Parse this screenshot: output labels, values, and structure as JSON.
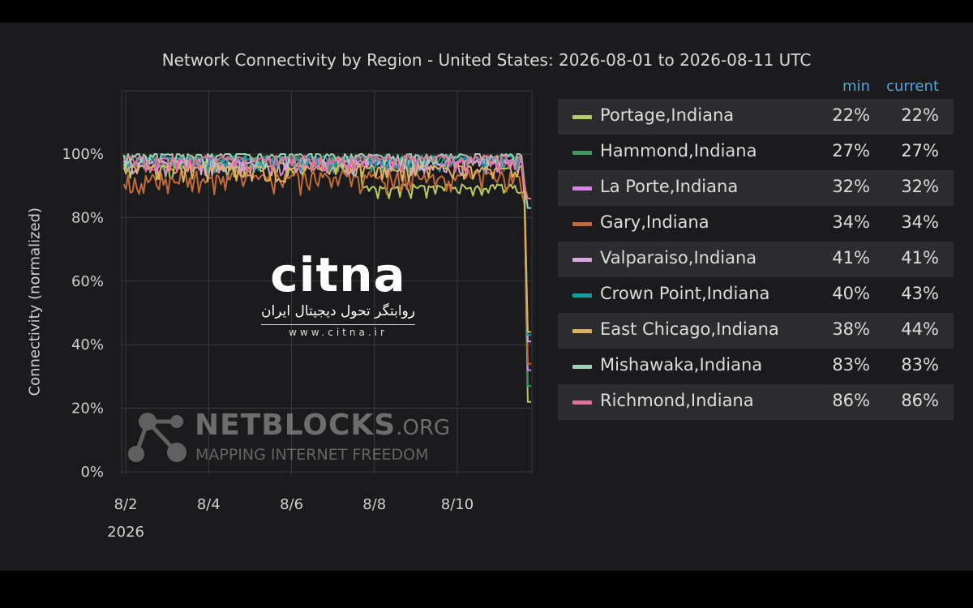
{
  "title": "Network Connectivity by Region - United States: 2026-08-01 to 2026-08-11 UTC",
  "legend_headers": {
    "min": "min",
    "current": "current"
  },
  "colors": {
    "panel_bg": "#1b1b1d",
    "grid": "#3a3a3c",
    "header_accent": "#4fa7e4"
  },
  "watermarks": {
    "citna_logo": "citna",
    "citna_tagline": "روابتگر تحول دیجیتال ایران",
    "citna_url": "www.citna.ir",
    "netblocks_name": "NETBLOCKS",
    "netblocks_suffix": ".ORG",
    "netblocks_tag": "MAPPING INTERNET FREEDOM"
  },
  "chart_data": {
    "type": "line",
    "title": "Network Connectivity by Region - United States: 2026-08-01 to 2026-08-11 UTC",
    "ylabel": "Connectivity (normalized)",
    "xlabel": "",
    "ylim": [
      0,
      100
    ],
    "y_ticks": [
      "0%",
      "20%",
      "40%",
      "60%",
      "80%",
      "100%"
    ],
    "x_ticks": [
      "8/2",
      "8/4",
      "8/6",
      "8/8",
      "8/10"
    ],
    "x_tick_year": "2026",
    "x_range_days": [
      1.9,
      11.8
    ],
    "grid": true,
    "legend_position": "right",
    "series": [
      {
        "name": "Portage,Indiana",
        "color": "#b5cc62",
        "min": "22%",
        "current": "22%",
        "baseline": 96,
        "drop_day": 7.7,
        "low": 89,
        "end": 22
      },
      {
        "name": "Hammond,Indiana",
        "color": "#3a9a62",
        "min": "27%",
        "current": "27%",
        "baseline": 98,
        "end": 27
      },
      {
        "name": "La Porte,Indiana",
        "color": "#d884e4",
        "min": "32%",
        "current": "32%",
        "baseline": 97,
        "end": 32
      },
      {
        "name": "Gary,Indiana",
        "color": "#c16b3a",
        "min": "34%",
        "current": "34%",
        "baseline": 92,
        "end": 34
      },
      {
        "name": "Valparaiso,Indiana",
        "color": "#d8a6dc",
        "min": "41%",
        "current": "41%",
        "baseline": 97,
        "end": 41
      },
      {
        "name": "Crown Point,Indiana",
        "color": "#1b9aa3",
        "min": "40%",
        "current": "43%",
        "baseline": 98,
        "end": 43
      },
      {
        "name": "East Chicago,Indiana",
        "color": "#ddb15f",
        "min": "38%",
        "current": "44%",
        "baseline": 95,
        "end": 44
      },
      {
        "name": "Mishawaka,Indiana",
        "color": "#9fd2b4",
        "min": "83%",
        "current": "83%",
        "baseline": 99,
        "end": 83
      },
      {
        "name": "Richmond,Indiana",
        "color": "#e0729a",
        "min": "86%",
        "current": "86%",
        "baseline": 98,
        "end": 86
      }
    ]
  }
}
